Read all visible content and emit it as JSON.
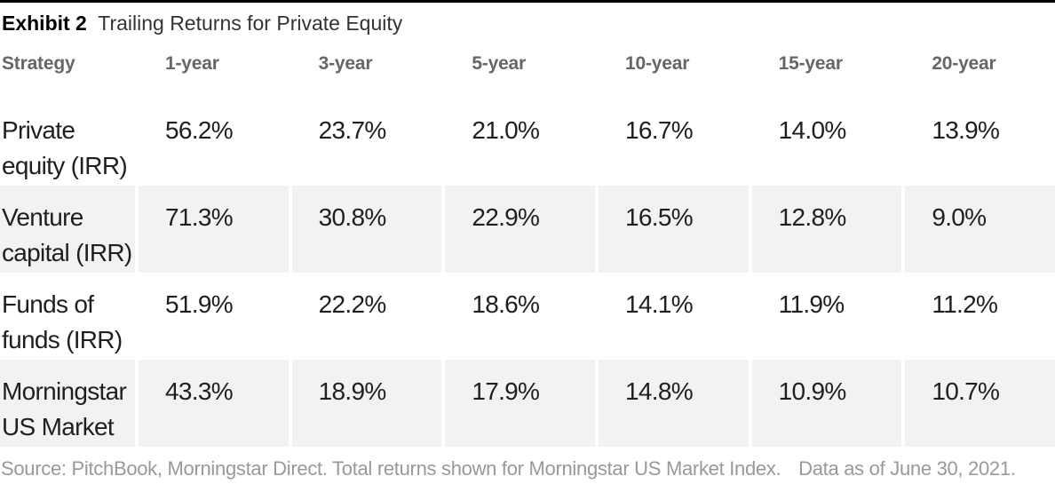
{
  "colors": {
    "top_rule": "#000000",
    "title_bold": "#000000",
    "title_regular": "#333333",
    "header_text": "#666666",
    "data_text": "#1f1f1f",
    "alt_row_background": "#f2f2f2",
    "footer_text": "#999999"
  },
  "header": {
    "exhibit_label": "Exhibit 2",
    "exhibit_title": "Trailing Returns for Private Equity"
  },
  "table": {
    "headers": [
      "Strategy",
      "1-year",
      "3-year",
      "5-year",
      "10-year",
      "15-year",
      "20-year"
    ],
    "rows": [
      {
        "strategy": [
          "Private",
          "equity (IRR)"
        ],
        "values": [
          "56.2%",
          "23.7%",
          "21.0%",
          "16.7%",
          "14.0%",
          "13.9%"
        ]
      },
      {
        "strategy": [
          "Venture",
          "capital (IRR)"
        ],
        "values": [
          "71.3%",
          "30.8%",
          "22.9%",
          "16.5%",
          "12.8%",
          "9.0%"
        ]
      },
      {
        "strategy": [
          "Funds of",
          "funds (IRR)"
        ],
        "values": [
          "51.9%",
          "22.2%",
          "18.6%",
          "14.1%",
          "11.9%",
          "11.2%"
        ]
      },
      {
        "strategy": [
          "Morningstar",
          "US Market"
        ],
        "values": [
          "43.3%",
          "18.9%",
          "17.9%",
          "14.8%",
          "10.9%",
          "10.7%"
        ]
      }
    ]
  },
  "footer": {
    "source": "Source: PitchBook, Morningstar Direct. Total returns shown for Morningstar US Market Index.",
    "as_of": "Data as of June 30, 2021."
  },
  "chart_data": {
    "type": "table",
    "title": "Exhibit 2 Trailing Returns for Private Equity",
    "columns": [
      "Strategy",
      "1-year",
      "3-year",
      "5-year",
      "10-year",
      "15-year",
      "20-year"
    ],
    "rows": [
      {
        "strategy": "Private equity (IRR)",
        "values_pct": [
          56.2,
          23.7,
          21.0,
          16.7,
          14.0,
          13.9
        ]
      },
      {
        "strategy": "Venture capital (IRR)",
        "values_pct": [
          71.3,
          30.8,
          22.9,
          16.5,
          12.8,
          9.0
        ]
      },
      {
        "strategy": "Funds of funds (IRR)",
        "values_pct": [
          51.9,
          22.2,
          18.6,
          14.1,
          11.9,
          11.2
        ]
      },
      {
        "strategy": "Morningstar US Market",
        "values_pct": [
          43.3,
          18.9,
          17.9,
          14.8,
          10.9,
          10.7
        ]
      }
    ],
    "note": "Source: PitchBook, Morningstar Direct. Total returns shown for Morningstar US Market Index. Data as of June 30, 2021."
  }
}
